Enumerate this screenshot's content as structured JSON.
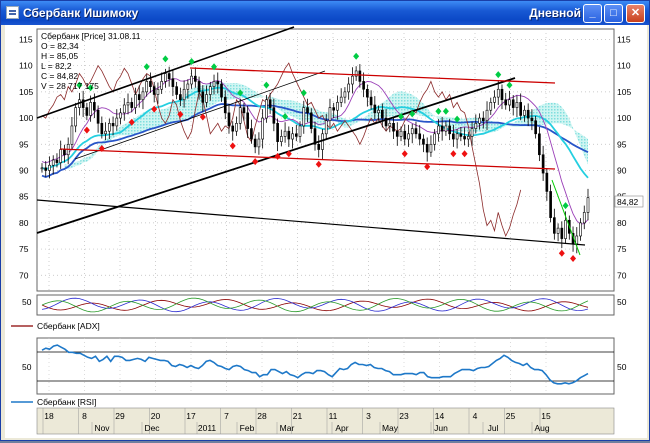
{
  "window": {
    "title": "Сбербанк Ишимоку",
    "timeframe": "Дневной",
    "buttons": [
      "_",
      "□",
      "✕"
    ],
    "icons": [
      "app-icon",
      "minimize-icon",
      "maximize-icon",
      "close-icon"
    ]
  },
  "price_panel": {
    "header": "Сбербанк [Price] 31.08.11",
    "ohlcv": [
      "O = 82,34",
      "H = 85,05",
      "L = 82,2",
      "C = 84,82",
      "V = 28 717 175"
    ],
    "last_value": "84,82",
    "y_ticks": [
      "115",
      "110",
      "105",
      "100",
      "95",
      "90",
      "85",
      "80",
      "75",
      "70"
    ]
  },
  "adx_panel": {
    "label": "Сбербанк [ADX]",
    "y_ticks": [
      "50"
    ]
  },
  "rsi_panel": {
    "label": "Сбербанк [RSI]",
    "y_ticks": [
      "50"
    ]
  },
  "x_axis": {
    "day_labels": [
      "18",
      "8",
      "29",
      "20",
      "17",
      "7",
      "28",
      "21",
      "11",
      "3",
      "23",
      "14",
      "4",
      "25",
      "15"
    ],
    "month_labels": [
      "Nov",
      "Dec",
      "2011",
      "Feb",
      "Mar",
      "Apr",
      "May",
      "Jun",
      "Jul",
      "Aug"
    ]
  },
  "colors": {
    "price_up": "#228b22",
    "price_down": "#8b0000",
    "channel_red": "#cc0000",
    "channel_black": "#000000",
    "cloud": "#66e0e0",
    "rsi_line": "#1e78c8",
    "up_marker": "#00cc44",
    "down_marker": "#ee1111"
  },
  "chart_data": {
    "type": "candlestick",
    "title": "Сбербанк [Price] 31.08.11",
    "ylim": [
      67,
      117
    ],
    "close": [
      90.5,
      90,
      91,
      92,
      91.5,
      94,
      93,
      95,
      98.5,
      102,
      103.5,
      102,
      100.5,
      103,
      101.5,
      99,
      97,
      97.5,
      99,
      98.5,
      100,
      101,
      102.5,
      103,
      102,
      104.5,
      103.5,
      105,
      107,
      106,
      104.5,
      105.5,
      107,
      108.5,
      107.5,
      106,
      104.5,
      103.5,
      105.5,
      106.5,
      108,
      107,
      105,
      103,
      104.5,
      106,
      107,
      106.5,
      104,
      101,
      98.5,
      97.5,
      99,
      102,
      101,
      98,
      96,
      94.5,
      96,
      100,
      103.5,
      102,
      99,
      95.5,
      96.5,
      97.5,
      96,
      97,
      96.5,
      98.5,
      102,
      101,
      98,
      95,
      94,
      97,
      99.5,
      102,
      101.5,
      103,
      104,
      105,
      106.5,
      108,
      109,
      107,
      105.5,
      104,
      102.5,
      101,
      101.5,
      100,
      98.5,
      99,
      97.5,
      96.5,
      97.5,
      96,
      97,
      98,
      97,
      96,
      95,
      93.5,
      95,
      97,
      98.5,
      97.5,
      98.5,
      97,
      96,
      97,
      96.5,
      96,
      96.5,
      98,
      99,
      100,
      99.5,
      101.5,
      103,
      104,
      105.5,
      103.5,
      102.5,
      103.5,
      102,
      103,
      100.5,
      101.5,
      100,
      99.5,
      97,
      93,
      89.5,
      86,
      81,
      78,
      79,
      77,
      80.5,
      78,
      76,
      77.5,
      80,
      82,
      84.8
    ],
    "rsi": [
      68,
      70,
      69,
      72,
      73,
      71,
      69,
      66,
      66,
      65,
      65,
      63,
      61,
      60,
      62,
      57,
      59,
      62,
      57,
      62,
      62,
      61,
      58,
      58,
      59,
      60,
      59,
      57,
      61,
      60,
      59,
      58,
      58,
      57,
      53,
      52,
      54,
      53,
      51,
      53,
      51,
      50,
      53,
      57,
      58,
      56,
      53,
      52,
      50,
      49,
      52,
      53,
      52,
      49,
      48,
      46,
      46,
      42,
      44,
      44,
      49,
      49,
      47,
      45,
      47,
      44,
      43,
      41,
      44,
      46,
      46,
      45,
      48,
      48,
      47,
      44,
      42,
      46,
      50,
      49,
      50,
      54,
      56,
      54,
      54,
      53,
      54,
      51,
      50,
      50,
      48,
      47,
      44,
      44,
      44,
      45,
      45,
      45,
      44,
      46,
      46,
      42,
      41,
      41,
      41,
      42,
      42,
      42,
      45,
      47,
      49,
      49,
      49,
      48,
      50,
      51,
      51,
      52,
      55,
      58,
      60,
      63,
      61,
      58,
      56,
      55,
      53,
      55,
      51,
      49,
      49,
      48,
      44,
      39,
      36,
      35,
      35,
      36,
      35,
      36,
      38,
      41,
      43,
      45
    ]
  }
}
